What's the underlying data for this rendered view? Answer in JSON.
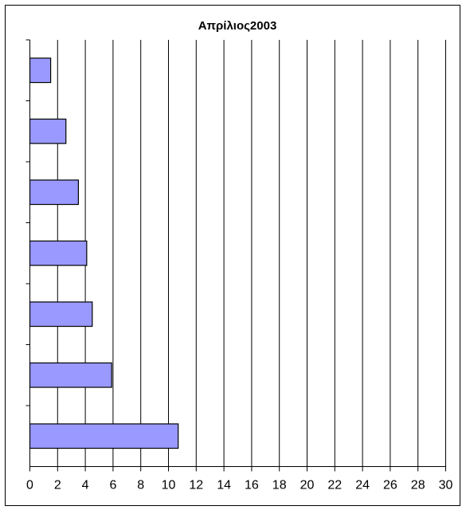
{
  "chart_data": {
    "type": "bar",
    "orientation": "horizontal",
    "title": "Απρίλιος2003",
    "categories": [
      null,
      null,
      null,
      null,
      null,
      null,
      null
    ],
    "values": [
      1.5,
      2.6,
      3.5,
      4.1,
      4.5,
      5.9,
      10.7
    ],
    "color": "#9999ff",
    "xlim": [
      0,
      30
    ],
    "xticks": [
      0,
      2,
      4,
      6,
      8,
      10,
      12,
      14,
      16,
      18,
      20,
      22,
      24,
      26,
      28,
      30
    ],
    "grid": true
  }
}
